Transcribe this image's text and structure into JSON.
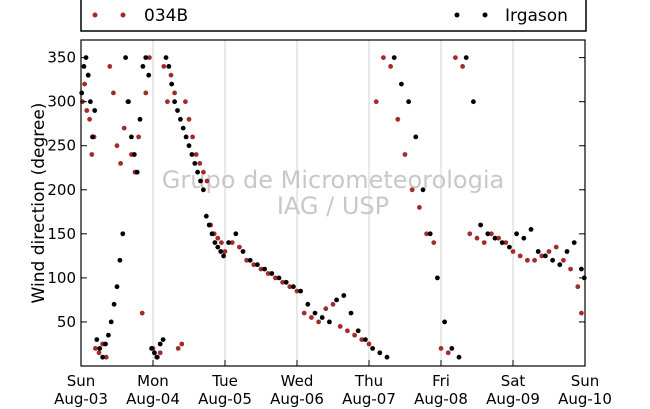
{
  "chart_data": {
    "type": "scatter",
    "ylabel": "Wind direction (degree)",
    "xlabel": "",
    "ylim": [
      0,
      370
    ],
    "xlim": [
      0,
      7
    ],
    "yticks": [
      50,
      100,
      150,
      200,
      250,
      300,
      350
    ],
    "xticks": [
      {
        "day": "Sun",
        "date": "Aug-03"
      },
      {
        "day": "Mon",
        "date": "Aug-04"
      },
      {
        "day": "Tue",
        "date": "Aug-05"
      },
      {
        "day": "Wed",
        "date": "Aug-06"
      },
      {
        "day": "Thu",
        "date": "Aug-07"
      },
      {
        "day": "Fri",
        "date": "Aug-08"
      },
      {
        "day": "Sat",
        "date": "Aug-09"
      },
      {
        "day": "Sun",
        "date": "Aug-10"
      }
    ],
    "grid": "vertical",
    "legend_position": "top",
    "watermark": [
      "Grupo de Micrometeorologia",
      "IAG / USP"
    ],
    "series": [
      {
        "name": "034B",
        "color": "#a52a2a",
        "x": [
          0.02,
          0.05,
          0.08,
          0.1,
          0.12,
          0.15,
          0.18,
          0.2,
          0.25,
          0.3,
          0.35,
          0.4,
          0.45,
          0.5,
          0.55,
          0.6,
          0.65,
          0.7,
          0.75,
          0.8,
          0.85,
          0.9,
          0.95,
          1.0,
          1.05,
          1.1,
          1.15,
          1.2,
          1.25,
          1.3,
          1.35,
          1.4,
          1.45,
          1.5,
          1.55,
          1.6,
          1.65,
          1.7,
          1.75,
          1.8,
          1.85,
          1.9,
          1.95,
          2.0,
          2.1,
          2.2,
          2.3,
          2.4,
          2.5,
          2.6,
          2.7,
          2.8,
          2.9,
          3.0,
          3.1,
          3.2,
          3.3,
          3.4,
          3.5,
          3.6,
          3.7,
          3.8,
          3.9,
          4.0,
          4.1,
          4.2,
          4.3,
          4.4,
          4.5,
          4.6,
          4.7,
          4.8,
          4.9,
          5.0,
          5.1,
          5.2,
          5.3,
          5.4,
          5.5,
          5.6,
          5.7,
          5.8,
          5.9,
          6.0,
          6.1,
          6.2,
          6.3,
          6.4,
          6.5,
          6.6,
          6.7,
          6.8,
          6.9,
          6.95
        ],
        "y": [
          300,
          320,
          290,
          330,
          280,
          240,
          260,
          20,
          15,
          25,
          10,
          340,
          310,
          250,
          230,
          270,
          300,
          240,
          220,
          260,
          60,
          310,
          350,
          20,
          10,
          15,
          340,
          300,
          330,
          310,
          20,
          25,
          300,
          280,
          260,
          240,
          230,
          220,
          210,
          160,
          150,
          145,
          140,
          130,
          140,
          135,
          120,
          115,
          110,
          105,
          100,
          95,
          90,
          85,
          60,
          55,
          50,
          65,
          70,
          45,
          40,
          35,
          30,
          25,
          300,
          350,
          340,
          280,
          240,
          200,
          180,
          150,
          140,
          20,
          15,
          350,
          340,
          150,
          145,
          140,
          150,
          145,
          140,
          130,
          125,
          120,
          120,
          125,
          130,
          135,
          120,
          110,
          90,
          60
        ]
      },
      {
        "name": "Irgason",
        "color": "#000000",
        "x": [
          0.01,
          0.04,
          0.07,
          0.1,
          0.13,
          0.16,
          0.19,
          0.22,
          0.26,
          0.3,
          0.34,
          0.38,
          0.42,
          0.46,
          0.5,
          0.54,
          0.58,
          0.62,
          0.66,
          0.7,
          0.74,
          0.78,
          0.82,
          0.86,
          0.9,
          0.94,
          0.98,
          1.02,
          1.06,
          1.1,
          1.14,
          1.18,
          1.22,
          1.26,
          1.3,
          1.34,
          1.38,
          1.42,
          1.46,
          1.5,
          1.54,
          1.58,
          1.62,
          1.66,
          1.7,
          1.74,
          1.78,
          1.82,
          1.86,
          1.9,
          1.94,
          1.98,
          2.05,
          2.15,
          2.25,
          2.35,
          2.45,
          2.55,
          2.65,
          2.75,
          2.85,
          2.95,
          3.05,
          3.15,
          3.25,
          3.35,
          3.45,
          3.55,
          3.65,
          3.75,
          3.85,
          3.95,
          4.05,
          4.15,
          4.25,
          4.35,
          4.45,
          4.55,
          4.65,
          4.75,
          4.85,
          4.95,
          5.05,
          5.15,
          5.25,
          5.35,
          5.45,
          5.55,
          5.65,
          5.75,
          5.85,
          5.95,
          6.05,
          6.15,
          6.25,
          6.35,
          6.45,
          6.55,
          6.65,
          6.75,
          6.85,
          6.95,
          6.99
        ],
        "y": [
          310,
          340,
          350,
          330,
          300,
          260,
          290,
          30,
          20,
          10,
          25,
          35,
          50,
          70,
          90,
          120,
          150,
          350,
          300,
          260,
          240,
          220,
          280,
          340,
          350,
          330,
          20,
          15,
          10,
          25,
          30,
          350,
          340,
          320,
          300,
          290,
          280,
          270,
          260,
          250,
          240,
          230,
          220,
          210,
          200,
          170,
          160,
          150,
          140,
          135,
          130,
          125,
          140,
          150,
          130,
          120,
          115,
          110,
          105,
          100,
          95,
          90,
          85,
          70,
          60,
          55,
          50,
          75,
          80,
          60,
          40,
          30,
          20,
          15,
          10,
          350,
          320,
          300,
          260,
          200,
          150,
          100,
          50,
          20,
          10,
          350,
          300,
          160,
          150,
          145,
          140,
          135,
          150,
          145,
          155,
          130,
          125,
          120,
          115,
          130,
          140,
          110,
          100
        ]
      }
    ]
  }
}
